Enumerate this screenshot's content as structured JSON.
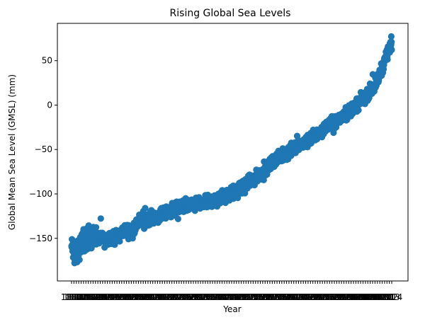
{
  "chart_data": {
    "type": "scatter",
    "title": "Rising Global Sea Levels",
    "xlabel": "Year",
    "ylabel": "Global Mean Sea Level (GMSL) (mm)",
    "ylim": [
      -198,
      92
    ],
    "yticks": [
      50,
      0,
      -50,
      -100,
      -150
    ],
    "yticklabels": [
      "50",
      "0",
      "−50",
      "−100",
      "−150"
    ],
    "xlim": [
      1880,
      2014
    ],
    "x_tick_range": [
      1880,
      2014
    ],
    "x_tick_labels_note": "overlapping year labels rendered illegibly",
    "marker_color": "#1f77b4",
    "grid": false,
    "anchors": [
      [
        1880,
        -160
      ],
      [
        1882,
        -170
      ],
      [
        1884,
        -155
      ],
      [
        1886,
        -150
      ],
      [
        1888,
        -148
      ],
      [
        1890,
        -150
      ],
      [
        1892,
        -150
      ],
      [
        1894,
        -152
      ],
      [
        1896,
        -148
      ],
      [
        1898,
        -150
      ],
      [
        1900,
        -148
      ],
      [
        1902,
        -140
      ],
      [
        1904,
        -142
      ],
      [
        1906,
        -140
      ],
      [
        1908,
        -132
      ],
      [
        1910,
        -128
      ],
      [
        1912,
        -128
      ],
      [
        1914,
        -126
      ],
      [
        1916,
        -125
      ],
      [
        1918,
        -124
      ],
      [
        1920,
        -121
      ],
      [
        1922,
        -118
      ],
      [
        1924,
        -116
      ],
      [
        1926,
        -114
      ],
      [
        1928,
        -112
      ],
      [
        1930,
        -113
      ],
      [
        1932,
        -112
      ],
      [
        1934,
        -111
      ],
      [
        1936,
        -110
      ],
      [
        1938,
        -108
      ],
      [
        1940,
        -107
      ],
      [
        1942,
        -106
      ],
      [
        1944,
        -104
      ],
      [
        1946,
        -100
      ],
      [
        1948,
        -98
      ],
      [
        1950,
        -95
      ],
      [
        1952,
        -92
      ],
      [
        1954,
        -88
      ],
      [
        1956,
        -84
      ],
      [
        1958,
        -80
      ],
      [
        1960,
        -75
      ],
      [
        1962,
        -70
      ],
      [
        1964,
        -65
      ],
      [
        1966,
        -60
      ],
      [
        1968,
        -57
      ],
      [
        1970,
        -53
      ],
      [
        1972,
        -50
      ],
      [
        1974,
        -48
      ],
      [
        1976,
        -45
      ],
      [
        1978,
        -42
      ],
      [
        1980,
        -38
      ],
      [
        1982,
        -34
      ],
      [
        1984,
        -30
      ],
      [
        1986,
        -25
      ],
      [
        1988,
        -22
      ],
      [
        1990,
        -20
      ],
      [
        1992,
        -16
      ],
      [
        1994,
        -11
      ],
      [
        1996,
        -7
      ],
      [
        1998,
        -3
      ],
      [
        2000,
        2
      ],
      [
        2002,
        7
      ],
      [
        2004,
        13
      ],
      [
        2006,
        20
      ],
      [
        2008,
        28
      ],
      [
        2010,
        42
      ],
      [
        2012,
        58
      ],
      [
        2014,
        70
      ]
    ],
    "noise_mm": 7,
    "samples_per_year": 12
  }
}
